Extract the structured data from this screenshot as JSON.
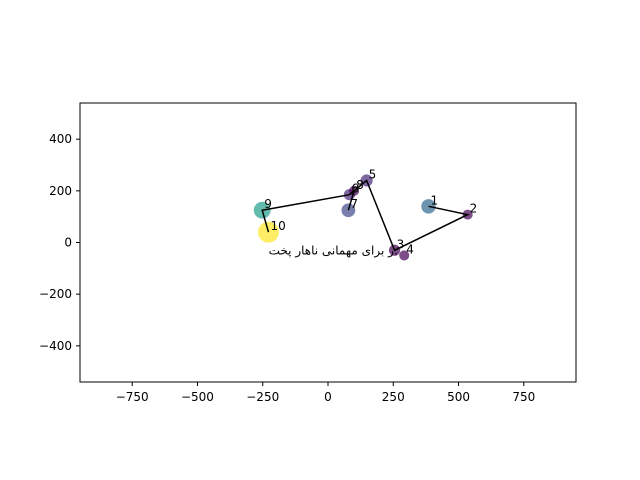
{
  "chart_data": {
    "type": "scatter",
    "title": "",
    "xlabel": "",
    "ylabel": "",
    "xlim": [
      -950,
      950
    ],
    "ylim": [
      -540,
      540
    ],
    "grid": false,
    "xticks": [
      -750,
      -500,
      -250,
      0,
      250,
      500,
      750
    ],
    "yticks": [
      -400,
      -200,
      0,
      200,
      400
    ],
    "xtick_labels": [
      "−750",
      "−500",
      "−250",
      "0",
      "250",
      "500",
      "750"
    ],
    "ytick_labels": [
      "−400",
      "−200",
      "0",
      "200",
      "400"
    ],
    "points": [
      {
        "label": "1",
        "x": 385,
        "y": 140,
        "size": 0.35,
        "value": 0.3
      },
      {
        "label": "2",
        "x": 535,
        "y": 108,
        "size": 0.1,
        "value": 0.0
      },
      {
        "label": "3",
        "x": 255,
        "y": -30,
        "size": 0.15,
        "value": 0.05
      },
      {
        "label": "4",
        "x": 292,
        "y": -50,
        "size": 0.1,
        "value": 0.0
      },
      {
        "label": "5",
        "x": 148,
        "y": 240,
        "size": 0.2,
        "value": 0.15
      },
      {
        "label": "6",
        "x": 82,
        "y": 185,
        "size": 0.15,
        "value": 0.1
      },
      {
        "label": "7",
        "x": 78,
        "y": 125,
        "size": 0.3,
        "value": 0.2
      },
      {
        "label": "8",
        "x": 100,
        "y": 200,
        "size": 0.1,
        "value": 0.05
      },
      {
        "label": "9",
        "x": -252,
        "y": 125,
        "size": 0.55,
        "value": 0.55
      },
      {
        "label": "10",
        "x": -228,
        "y": 40,
        "size": 1.0,
        "value": 1.0
      }
    ],
    "path_order": [
      1,
      2,
      3,
      5,
      6,
      9,
      10
    ],
    "path_segments": [
      [
        8,
        7
      ]
    ],
    "annotation": {
      "text": "ر برای مهمانی ناهار پخت.",
      "x": 20,
      "y": -30
    },
    "colors": {
      "line": "#000000",
      "viridis": [
        "#440154",
        "#482878",
        "#3e4989",
        "#31688e",
        "#26828e",
        "#1f9e89",
        "#35b779",
        "#6ece58",
        "#b5de2b",
        "#fde725"
      ]
    }
  }
}
